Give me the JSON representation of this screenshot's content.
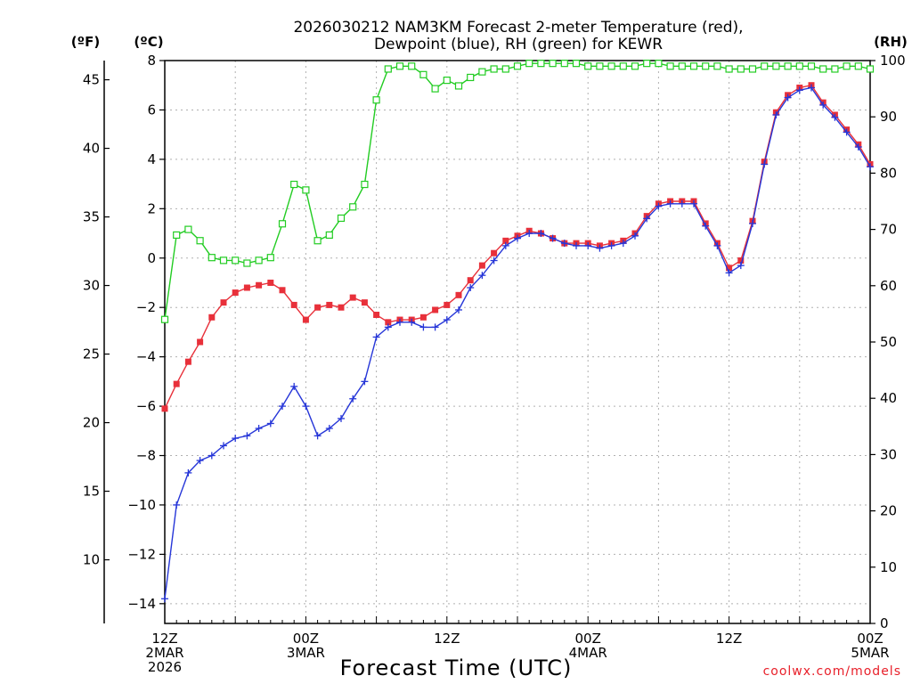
{
  "chart_data": {
    "type": "line",
    "title_line1": "2026030212 NAM3KM Forecast 2-meter Temperature (red),",
    "title_line2": "Dewpoint (blue), RH (green) for KEWR",
    "left_unit_f": "(ºF)",
    "left_unit_c": "(ºC)",
    "right_unit": "(RH)",
    "xlabel": "Forecast Time (UTC)",
    "credit": "coolwx.com/models",
    "x_range_hours": [
      0,
      60
    ],
    "x_step_hours": 1,
    "x_ticks": [
      {
        "hour": 0,
        "lines": [
          "12Z",
          "2MAR",
          "2026"
        ]
      },
      {
        "hour": 12,
        "lines": [
          "00Z",
          "3MAR"
        ]
      },
      {
        "hour": 24,
        "lines": [
          "12Z"
        ]
      },
      {
        "hour": 36,
        "lines": [
          "00Z",
          "4MAR"
        ]
      },
      {
        "hour": 48,
        "lines": [
          "12Z"
        ]
      },
      {
        "hour": 60,
        "lines": [
          "00Z",
          "5MAR"
        ]
      }
    ],
    "celsius_axis": {
      "range": [
        -14.8,
        8
      ],
      "ticks": [
        8,
        6,
        4,
        2,
        0,
        -2,
        -4,
        -6,
        -8,
        -10,
        -12,
        -14
      ]
    },
    "fahrenheit_axis": {
      "ticks": [
        45,
        40,
        35,
        30,
        25,
        20,
        15,
        10
      ]
    },
    "rh_axis": {
      "range": [
        0,
        100
      ],
      "ticks": [
        100,
        90,
        80,
        70,
        60,
        50,
        40,
        30,
        20,
        10,
        0
      ]
    },
    "grid": true,
    "series": [
      {
        "name": "Temperature",
        "color": "#e8303a",
        "axis": "celsius",
        "values": [
          -6.1,
          -5.1,
          -4.2,
          -3.4,
          -2.4,
          -1.8,
          -1.4,
          -1.2,
          -1.1,
          -1.0,
          -1.3,
          -1.9,
          -2.5,
          -2.0,
          -1.9,
          -2.0,
          -1.6,
          -1.8,
          -2.3,
          -2.6,
          -2.5,
          -2.5,
          -2.4,
          -2.1,
          -1.9,
          -1.5,
          -0.9,
          -0.3,
          0.2,
          0.7,
          0.9,
          1.1,
          1.0,
          0.8,
          0.6,
          0.6,
          0.6,
          0.5,
          0.6,
          0.7,
          1.0,
          1.7,
          2.2,
          2.3,
          2.3,
          2.3,
          1.4,
          0.6,
          -0.4,
          -0.1,
          1.5,
          3.9,
          5.9,
          6.6,
          6.9,
          7.0,
          6.3,
          5.8,
          5.2,
          4.6,
          3.8
        ]
      },
      {
        "name": "Dewpoint",
        "color": "#2636d8",
        "axis": "celsius",
        "values": [
          -13.8,
          -10.0,
          -8.7,
          -8.2,
          -8.0,
          -7.6,
          -7.3,
          -7.2,
          -6.9,
          -6.7,
          -6.0,
          -5.2,
          -6.0,
          -7.2,
          -6.9,
          -6.5,
          -5.7,
          -5.0,
          -3.2,
          -2.8,
          -2.6,
          -2.6,
          -2.8,
          -2.8,
          -2.5,
          -2.1,
          -1.2,
          -0.7,
          -0.1,
          0.5,
          0.8,
          1.0,
          1.0,
          0.8,
          0.6,
          0.5,
          0.5,
          0.4,
          0.5,
          0.6,
          0.9,
          1.6,
          2.1,
          2.2,
          2.2,
          2.2,
          1.3,
          0.5,
          -0.6,
          -0.3,
          1.4,
          3.8,
          5.8,
          6.5,
          6.8,
          6.9,
          6.2,
          5.7,
          5.1,
          4.5,
          3.7
        ]
      },
      {
        "name": "RH",
        "color": "#22cc22",
        "axis": "rh",
        "values": [
          54,
          69,
          70,
          68,
          65,
          64.5,
          64.5,
          64,
          64.5,
          65,
          71,
          78,
          77,
          68,
          69,
          72,
          74,
          78,
          93,
          98.5,
          99,
          99,
          97.5,
          95,
          96.5,
          95.5,
          97,
          98,
          98.5,
          98.5,
          99,
          99.5,
          99.5,
          99.5,
          99.5,
          99.5,
          99,
          99,
          99,
          99,
          99,
          99.5,
          99.5,
          99,
          99,
          99,
          99,
          99,
          98.5,
          98.5,
          98.5,
          99,
          99,
          99,
          99,
          99,
          98.5,
          98.5,
          99,
          99,
          98.5
        ]
      }
    ]
  }
}
